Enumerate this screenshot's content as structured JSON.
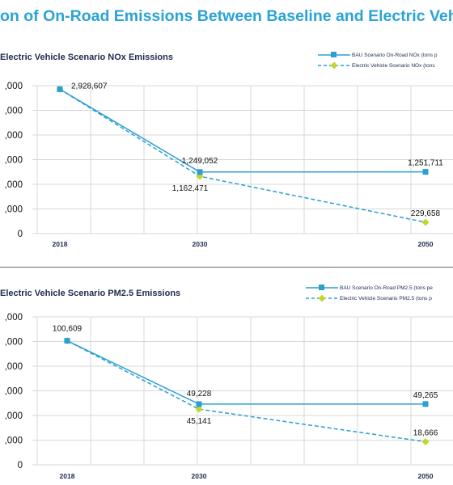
{
  "page": {
    "title": "on of On-Road Emissions Between Baseline and Electric Veh"
  },
  "colors": {
    "bau": "#2a9fd3",
    "ev_line": "#2a9fd3",
    "ev_marker": "#c4d62a",
    "title": "#2aa3d6",
    "text": "#1d2b4e",
    "grid": "#d7d7d7"
  },
  "chart_data": [
    {
      "type": "line",
      "title": "Electric Vehicle Scenario NOx Emissions",
      "x": [
        "2018",
        "2030",
        "2050"
      ],
      "y_tick_labels": [
        ",000",
        ",000",
        ",000",
        ",000",
        ",000",
        ",000",
        "0"
      ],
      "ylim": [
        0,
        3000000
      ],
      "grid": true,
      "legend_position": "top-right",
      "series": [
        {
          "name": "BAU Scenario On-Road NOx (tons p",
          "values": [
            2928607,
            1249052,
            1251711
          ],
          "style": "solid",
          "marker": "square"
        },
        {
          "name": "Electric Vehicle Scenario NOx (tons",
          "values": [
            2928607,
            1162471,
            229658
          ],
          "style": "dashed",
          "marker": "diamond"
        }
      ],
      "data_labels": [
        {
          "series": 0,
          "index": 0,
          "text": "2,928,607"
        },
        {
          "series": 0,
          "index": 1,
          "text": "1,249,052"
        },
        {
          "series": 1,
          "index": 1,
          "text": "1,162,471"
        },
        {
          "series": 0,
          "index": 2,
          "text": "1,251,711"
        },
        {
          "series": 1,
          "index": 2,
          "text": "229,658"
        }
      ]
    },
    {
      "type": "line",
      "title": "Electric Vehicle  Scenario PM2.5 Emissions",
      "x": [
        "2018",
        "2030",
        "2050"
      ],
      "y_tick_labels": [
        ",000",
        ",000",
        ",000",
        ",000",
        ",000",
        ",000",
        "0"
      ],
      "ylim": [
        0,
        120000
      ],
      "grid": true,
      "legend_position": "top-right",
      "series": [
        {
          "name": "BAU Scenario On-Road PM2.5 (tons pe",
          "values": [
            100609,
            49228,
            49265
          ],
          "style": "solid",
          "marker": "square"
        },
        {
          "name": "Electric Vehicle Scenario PM2.5 (tons p",
          "values": [
            100609,
            45141,
            18666
          ],
          "style": "dashed",
          "marker": "diamond"
        }
      ],
      "data_labels": [
        {
          "series": 0,
          "index": 0,
          "text": "100,609"
        },
        {
          "series": 0,
          "index": 1,
          "text": "49,228"
        },
        {
          "series": 1,
          "index": 1,
          "text": "45,141"
        },
        {
          "series": 0,
          "index": 2,
          "text": "49,265"
        },
        {
          "series": 1,
          "index": 2,
          "text": "18,666"
        }
      ]
    }
  ]
}
